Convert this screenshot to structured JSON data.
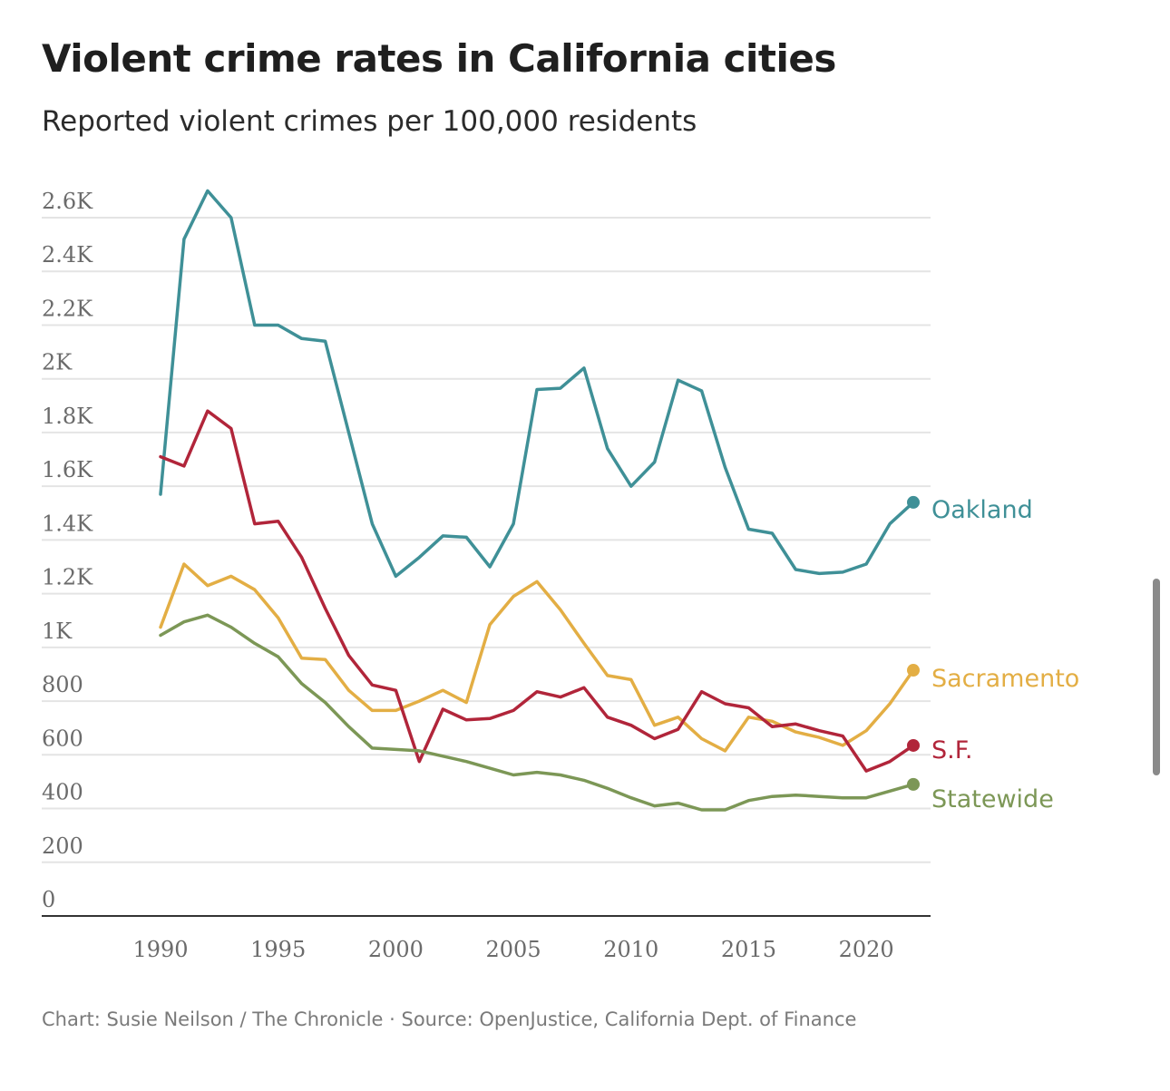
{
  "title": "Violent crime rates in California cities",
  "subtitle": "Reported violent crimes per 100,000 residents",
  "footer": "Chart: Susie Neilson / The Chronicle · Source: OpenJustice, California Dept. of Finance",
  "chart_data": {
    "type": "line",
    "title": "Violent crime rates in California cities",
    "subtitle": "Reported violent crimes per 100,000 residents",
    "xlabel": "",
    "ylabel": "",
    "xlim": [
      1985,
      2022.7
    ],
    "ylim": [
      0,
      2600
    ],
    "grid": true,
    "legend": "direct labels at line ends",
    "x_ticks": [
      1990,
      1995,
      2000,
      2005,
      2010,
      2015,
      2020
    ],
    "x_tick_labels": [
      "1990",
      "1995",
      "2000",
      "2005",
      "2010",
      "2015",
      "2020"
    ],
    "y_ticks": [
      0,
      200,
      400,
      600,
      800,
      1000,
      1200,
      1400,
      1600,
      1800,
      2000,
      2200,
      2400,
      2600
    ],
    "y_tick_labels": [
      "0",
      "200",
      "400",
      "600",
      "800",
      "1K",
      "1.2K",
      "1.4K",
      "1.6K",
      "1.8K",
      "2K",
      "2.2K",
      "2.4K",
      "2.6K"
    ],
    "x": [
      1990,
      1991,
      1992,
      1993,
      1994,
      1995,
      1996,
      1997,
      1998,
      1999,
      2000,
      2001,
      2002,
      2003,
      2004,
      2005,
      2006,
      2007,
      2008,
      2009,
      2010,
      2011,
      2012,
      2013,
      2014,
      2015,
      2016,
      2017,
      2018,
      2019,
      2020,
      2021,
      2022
    ],
    "series": [
      {
        "name": "Oakland",
        "color": "#3f9097",
        "values": [
          1570,
          2520,
          2700,
          2600,
          2200,
          2200,
          2150,
          2140,
          1800,
          1460,
          1265,
          1335,
          1415,
          1410,
          1300,
          1460,
          1960,
          1965,
          2040,
          1740,
          1600,
          1690,
          1995,
          1955,
          1670,
          1440,
          1425,
          1290,
          1275,
          1280,
          1310,
          1460,
          1540
        ]
      },
      {
        "name": "Sacramento",
        "color": "#e3ae44",
        "values": [
          1075,
          1310,
          1230,
          1265,
          1215,
          1110,
          960,
          955,
          840,
          765,
          765,
          800,
          840,
          795,
          1085,
          1190,
          1245,
          1140,
          1015,
          895,
          880,
          710,
          740,
          660,
          615,
          740,
          725,
          685,
          665,
          635,
          690,
          790,
          915
        ]
      },
      {
        "name": "S.F.",
        "color": "#b1253a",
        "values": [
          1710,
          1675,
          1880,
          1815,
          1460,
          1470,
          1335,
          1145,
          970,
          860,
          840,
          575,
          770,
          730,
          735,
          765,
          835,
          815,
          850,
          740,
          710,
          660,
          695,
          835,
          790,
          775,
          705,
          715,
          690,
          670,
          540,
          575,
          635
        ]
      },
      {
        "name": "Statewide",
        "color": "#7c9756",
        "values": [
          1045,
          1095,
          1120,
          1075,
          1015,
          965,
          865,
          795,
          705,
          625,
          620,
          615,
          595,
          575,
          550,
          525,
          535,
          525,
          505,
          475,
          440,
          410,
          420,
          395,
          395,
          430,
          445,
          450,
          445,
          440,
          440,
          465,
          490
        ]
      }
    ]
  }
}
